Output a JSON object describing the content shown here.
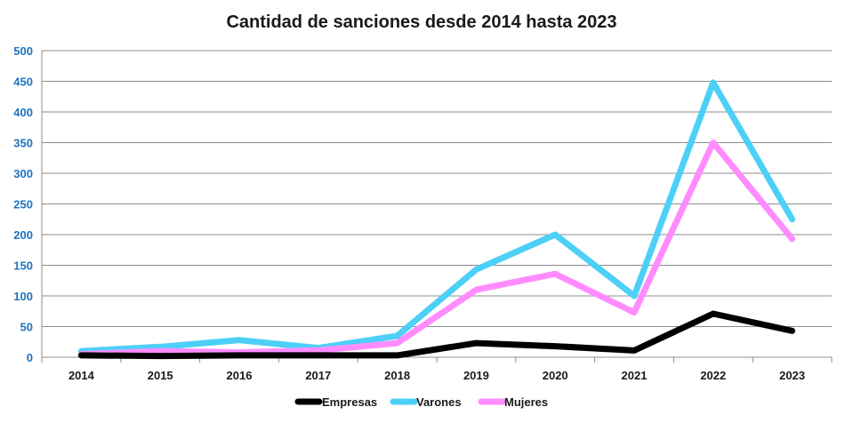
{
  "chart_data": {
    "type": "line",
    "title": "Cantidad de sanciones desde 2014 hasta 2023",
    "xlabel": "",
    "ylabel": "",
    "categories": [
      "2014",
      "2015",
      "2016",
      "2017",
      "2018",
      "2019",
      "2020",
      "2021",
      "2022",
      "2023"
    ],
    "ylim": [
      0,
      500
    ],
    "yticks": [
      "0",
      "50",
      "100",
      "150",
      "200",
      "250",
      "300",
      "350",
      "400",
      "450",
      "500"
    ],
    "grid": true,
    "legend_position": "bottom",
    "series": [
      {
        "name": "Empresas",
        "color": "#000000",
        "values": [
          3,
          2,
          3,
          3,
          3,
          23,
          18,
          11,
          71,
          43
        ]
      },
      {
        "name": "Varones",
        "color": "#4dd0f7",
        "values": [
          10,
          17,
          28,
          15,
          35,
          143,
          200,
          100,
          448,
          225
        ]
      },
      {
        "name": "Mujeres",
        "color": "#ff8cff",
        "values": [
          5,
          10,
          8,
          11,
          23,
          110,
          136,
          73,
          350,
          193
        ]
      }
    ]
  }
}
